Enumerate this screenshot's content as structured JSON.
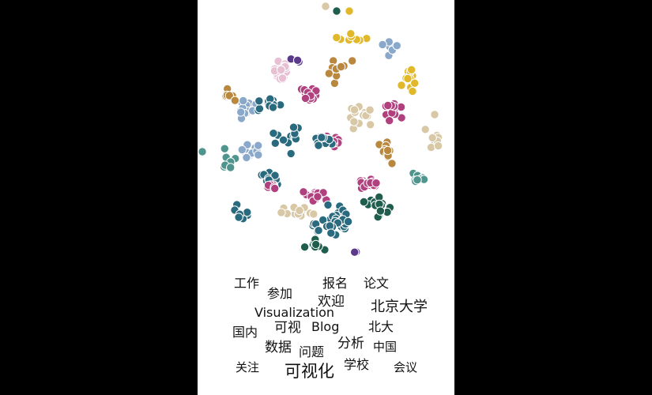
{
  "colors": {
    "background": "#000000",
    "panel": "#ffffff",
    "palette": {
      "teal": "#2a6a7e",
      "magenta": "#b0407e",
      "pink": "#e8bfd3",
      "gold": "#e0b82a",
      "steel": "#8aa8c9",
      "tan": "#d8c8a6",
      "brown": "#b9883e",
      "sea": "#4f958d",
      "purple": "#5b3a8a",
      "darkgreen": "#1f5d4c"
    }
  },
  "word_cloud": {
    "words": [
      {
        "key": "w1",
        "text": "工作"
      },
      {
        "key": "w2",
        "text": "参加"
      },
      {
        "key": "w3",
        "text": "报名"
      },
      {
        "key": "w4",
        "text": "论文"
      },
      {
        "key": "w5",
        "text": "欢迎"
      },
      {
        "key": "w6",
        "text": "Visualization"
      },
      {
        "key": "w7",
        "text": "北京大学"
      },
      {
        "key": "w8",
        "text": "国内"
      },
      {
        "key": "w9",
        "text": "可视"
      },
      {
        "key": "w10",
        "text": "Blog"
      },
      {
        "key": "w11",
        "text": "北大"
      },
      {
        "key": "w12",
        "text": "数据"
      },
      {
        "key": "w13",
        "text": "问题"
      },
      {
        "key": "w14",
        "text": "分析"
      },
      {
        "key": "w15",
        "text": "中国"
      },
      {
        "key": "w16",
        "text": "关注"
      },
      {
        "key": "w17",
        "text": "学校"
      },
      {
        "key": "w18",
        "text": "可视化"
      },
      {
        "key": "w19",
        "text": "会议"
      }
    ]
  }
}
